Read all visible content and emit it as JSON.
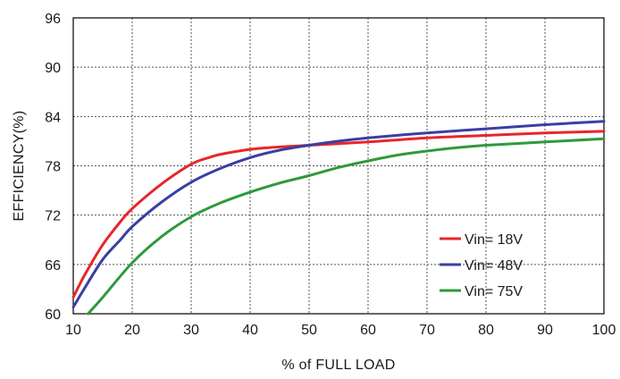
{
  "chart_data": {
    "type": "line",
    "title": "",
    "xlabel": "% of FULL LOAD",
    "ylabel": "EFFICIENCY(%)",
    "xlim": [
      10,
      100
    ],
    "ylim": [
      60,
      96
    ],
    "x_ticks": [
      10,
      20,
      30,
      40,
      50,
      60,
      70,
      80,
      90,
      100
    ],
    "y_ticks": [
      60,
      66,
      72,
      78,
      84,
      90,
      96
    ],
    "grid": true,
    "legend_position": "bottom-right",
    "series": [
      {
        "name": "Vin= 18V",
        "color": "#e8262a",
        "x": [
          10,
          12,
          15,
          18,
          20,
          25,
          30,
          33,
          35,
          40,
          45,
          50,
          55,
          60,
          70,
          80,
          90,
          100
        ],
        "y": [
          62.0,
          64.8,
          68.4,
          71.2,
          72.8,
          75.8,
          78.2,
          79.0,
          79.4,
          80.0,
          80.3,
          80.5,
          80.7,
          80.9,
          81.4,
          81.7,
          82.0,
          82.2
        ]
      },
      {
        "name": "Vin= 48V",
        "color": "#3a3fa3",
        "x": [
          10,
          12,
          15,
          18,
          20,
          25,
          30,
          35,
          40,
          45,
          50,
          55,
          60,
          70,
          80,
          90,
          100
        ],
        "y": [
          60.8,
          63.2,
          66.6,
          69.0,
          70.6,
          73.6,
          76.0,
          77.7,
          79.0,
          79.9,
          80.5,
          81.0,
          81.4,
          82.0,
          82.5,
          83.0,
          83.4
        ]
      },
      {
        "name": "Vin= 75V",
        "color": "#2e9a3c",
        "x": [
          12.5,
          15,
          20,
          25,
          30,
          35,
          40,
          45,
          50,
          55,
          60,
          65,
          70,
          75,
          80,
          90,
          100
        ],
        "y": [
          60.0,
          62.0,
          66.2,
          69.4,
          71.8,
          73.5,
          74.8,
          75.9,
          76.8,
          77.8,
          78.6,
          79.3,
          79.8,
          80.2,
          80.5,
          80.9,
          81.3
        ]
      }
    ]
  }
}
